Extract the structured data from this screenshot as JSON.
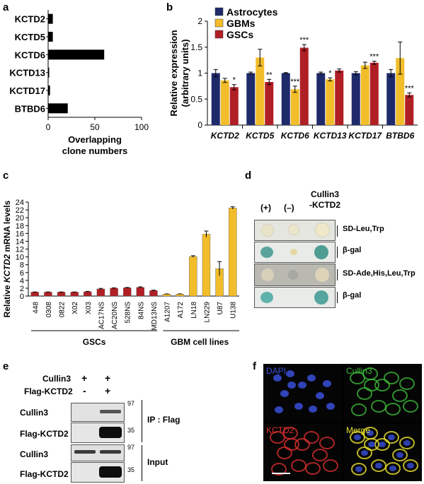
{
  "panel_letters": [
    "a",
    "b",
    "c",
    "d",
    "e",
    "f"
  ],
  "chart_data": [
    {
      "type": "bar",
      "orientation": "horizontal",
      "categories": [
        "KCTD2",
        "KCTD5",
        "KCTD6",
        "KCTD13",
        "KCTD17",
        "BTBD6"
      ],
      "values": [
        5,
        5,
        60,
        1,
        2,
        21
      ],
      "xlabel": "Overlapping clone numbers",
      "xticks": [
        "0",
        "50",
        "100"
      ],
      "xlim": [
        0,
        100
      ],
      "grid": false,
      "colors": {
        "bar": "#000000"
      }
    },
    {
      "type": "bar",
      "categories": [
        "KCTD2",
        "KCTD5",
        "KCTD6",
        "KCTD13",
        "KCTD17",
        "BTBD6"
      ],
      "series": [
        {
          "name": "Astrocytes",
          "color": "#1f2a6b",
          "values": [
            1.0,
            1.0,
            1.0,
            1.0,
            1.0,
            1.0
          ],
          "errors": [
            0.07,
            0.02,
            0.01,
            0.02,
            0.03,
            0.07
          ],
          "stars": [
            "",
            "",
            "",
            "",
            "",
            ""
          ]
        },
        {
          "name": "GBMs",
          "color": "#f2bd2a",
          "values": [
            0.86,
            1.3,
            0.69,
            0.88,
            1.15,
            1.29
          ],
          "errors": [
            0.04,
            0.16,
            0.06,
            0.03,
            0.06,
            0.31
          ],
          "stars": [
            "",
            "",
            "***",
            "*",
            "",
            ""
          ]
        },
        {
          "name": "GSCs",
          "color": "#b01f24",
          "values": [
            0.73,
            0.83,
            1.49,
            1.05,
            1.2,
            0.58
          ],
          "errors": [
            0.05,
            0.05,
            0.06,
            0.03,
            0.03,
            0.04
          ],
          "stars": [
            "*",
            "**",
            "***",
            "",
            "***",
            "***"
          ]
        }
      ],
      "ylabel": "Relative expression\n(arbitrary units)",
      "yticks": [
        "0",
        "0.5",
        "1",
        "1.5",
        "2"
      ],
      "ylim": [
        0,
        2
      ],
      "legend": "top-left",
      "grid": false
    },
    {
      "type": "bar",
      "categories": [
        "448",
        "0308",
        "0822",
        "X02",
        "X03",
        "AC17NS",
        "AC20NS",
        "528NS",
        "84NS",
        "MD13NS",
        "A1207",
        "A172",
        "LN18",
        "LN229",
        "U87",
        "U138"
      ],
      "values": [
        1.0,
        1.0,
        1.0,
        1.0,
        1.1,
        1.8,
        2.0,
        2.1,
        2.2,
        1.4,
        0.5,
        0.5,
        10.1,
        15.8,
        7.0,
        22.5
      ],
      "errors": [
        0.05,
        0.05,
        0.05,
        0.05,
        0.1,
        0.15,
        0.1,
        0.1,
        0.15,
        0.1,
        0.05,
        0.05,
        0.2,
        0.8,
        1.8,
        0.3
      ],
      "bar_colors": [
        "#b01f24",
        "#b01f24",
        "#b01f24",
        "#b01f24",
        "#b01f24",
        "#b01f24",
        "#b01f24",
        "#b01f24",
        "#b01f24",
        "#b01f24",
        "#f2bd2a",
        "#f2bd2a",
        "#f2bd2a",
        "#f2bd2a",
        "#f2bd2a",
        "#f2bd2a"
      ],
      "ylabel_prefix": "Relative ",
      "ylabel_gene": "KCTD2",
      "ylabel_suffix": " mRNA levels",
      "yticks": [
        "0",
        "2",
        "4",
        "6",
        "8",
        "10",
        "12",
        "14",
        "16",
        "18",
        "20",
        "22",
        "24"
      ],
      "ylim": [
        0,
        24
      ],
      "groups": [
        "GSCs",
        "GBM cell lines"
      ],
      "grid": false
    }
  ],
  "yeast": {
    "col_labels": [
      "(+)",
      "(–)",
      "Cullin3\n-KCTD2"
    ],
    "row_labels": [
      "SD-Leu,Trp",
      "β-gal",
      "SD-Ade,His,Leu,Trp",
      "β-gal"
    ]
  },
  "westernblot": {
    "cond_labels": [
      "Cullin3",
      "Flag-KCTD2"
    ],
    "lane1": [
      "+",
      "-"
    ],
    "lane2": [
      "+",
      "+"
    ],
    "blot_labels": [
      "Cullin3",
      "Flag-KCTD2",
      "Cullin3",
      "Flag-KCTD2"
    ],
    "markers": [
      "97",
      "35",
      "97",
      "35"
    ],
    "ip_label": "IP : Flag",
    "input_label": "Input"
  },
  "microscopy": {
    "quadrants": [
      "DAPI",
      "Cullin3",
      "KCTD2",
      "Merge"
    ],
    "colors": [
      "#3a4fd8",
      "#3fbf3a",
      "#e03030",
      "#e8e030"
    ]
  }
}
